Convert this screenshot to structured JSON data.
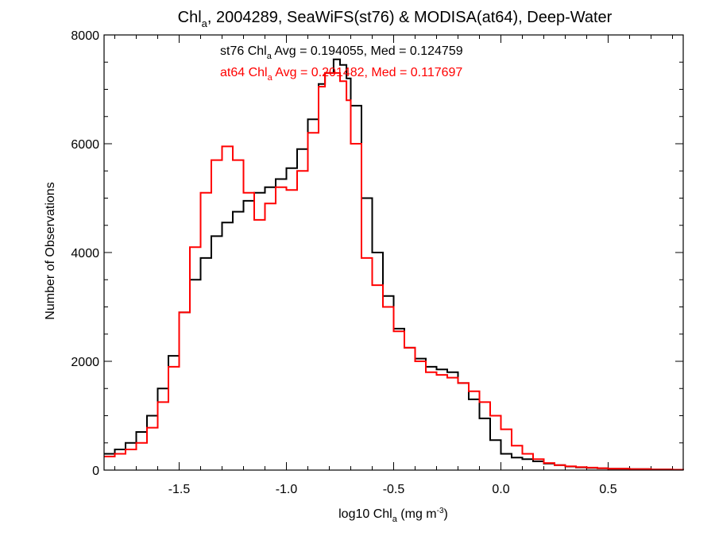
{
  "chart_data": {
    "type": "line",
    "title": {
      "pre": "Chl",
      "sub": "a",
      "post": ", 2004289, SeaWiFS(st76) & MODISA(at64), Deep-Water"
    },
    "xlabel": {
      "pre": "log10 Chl",
      "sub": "a",
      "mid": " (mg m",
      "sup": "-3",
      "post": ")"
    },
    "ylabel": "Number of Observations",
    "xlim": [
      -1.85,
      0.85
    ],
    "ylim": [
      0,
      8000
    ],
    "x_ticks": [
      -1.5,
      -1.0,
      -0.5,
      0.0,
      0.5
    ],
    "x_tick_labels": [
      "-1.5",
      "-1.0",
      "-0.5",
      "0.0",
      "0.5"
    ],
    "y_ticks": [
      0,
      2000,
      4000,
      6000,
      8000
    ],
    "y_tick_labels": [
      "0",
      "2000",
      "4000",
      "6000",
      "8000"
    ],
    "grid": false,
    "annotations": [
      {
        "series": "st76",
        "pre": "st76 Chl",
        "sub": "a",
        "post": " Avg = 0.194055, Med = 0.124759",
        "color": "#000000"
      },
      {
        "series": "at64",
        "pre": "at64 Chl",
        "sub": "a",
        "post": " Avg = 0.201482, Med = 0.117697",
        "color": "#ff0000"
      }
    ],
    "series": [
      {
        "name": "st76",
        "color": "#000000",
        "x": [
          -1.85,
          -1.8,
          -1.75,
          -1.7,
          -1.65,
          -1.6,
          -1.55,
          -1.5,
          -1.45,
          -1.4,
          -1.35,
          -1.3,
          -1.25,
          -1.2,
          -1.15,
          -1.1,
          -1.05,
          -1.0,
          -0.95,
          -0.9,
          -0.85,
          -0.82,
          -0.78,
          -0.75,
          -0.72,
          -0.7,
          -0.65,
          -0.6,
          -0.55,
          -0.5,
          -0.45,
          -0.4,
          -0.35,
          -0.3,
          -0.25,
          -0.2,
          -0.15,
          -0.1,
          -0.05,
          0.0,
          0.05,
          0.1,
          0.15,
          0.2,
          0.25,
          0.3,
          0.35,
          0.4,
          0.45,
          0.5,
          0.6,
          0.7,
          0.8,
          0.85
        ],
        "y": [
          300,
          380,
          500,
          700,
          1000,
          1500,
          2100,
          2900,
          3500,
          3900,
          4300,
          4550,
          4750,
          4950,
          5100,
          5200,
          5350,
          5550,
          5900,
          6450,
          7100,
          7300,
          7550,
          7450,
          7200,
          6700,
          5000,
          4000,
          3200,
          2600,
          2250,
          2050,
          1900,
          1850,
          1800,
          1600,
          1300,
          950,
          550,
          300,
          230,
          200,
          160,
          120,
          90,
          65,
          50,
          40,
          32,
          25,
          18,
          12,
          8,
          5
        ]
      },
      {
        "name": "at64",
        "color": "#ff0000",
        "x": [
          -1.85,
          -1.8,
          -1.75,
          -1.7,
          -1.65,
          -1.6,
          -1.55,
          -1.5,
          -1.45,
          -1.4,
          -1.35,
          -1.3,
          -1.25,
          -1.2,
          -1.15,
          -1.1,
          -1.05,
          -1.0,
          -0.95,
          -0.9,
          -0.85,
          -0.82,
          -0.78,
          -0.75,
          -0.72,
          -0.7,
          -0.65,
          -0.6,
          -0.55,
          -0.5,
          -0.45,
          -0.4,
          -0.35,
          -0.3,
          -0.25,
          -0.2,
          -0.15,
          -0.1,
          -0.05,
          0.0,
          0.05,
          0.1,
          0.15,
          0.2,
          0.25,
          0.3,
          0.35,
          0.4,
          0.45,
          0.5,
          0.6,
          0.7,
          0.8,
          0.85
        ],
        "y": [
          250,
          300,
          380,
          500,
          780,
          1250,
          1900,
          2900,
          4100,
          5100,
          5700,
          5950,
          5700,
          5100,
          4600,
          4900,
          5200,
          5150,
          5500,
          6200,
          7050,
          7300,
          7300,
          7150,
          6800,
          6000,
          3900,
          3400,
          3000,
          2550,
          2250,
          2000,
          1800,
          1750,
          1700,
          1600,
          1450,
          1250,
          1000,
          750,
          450,
          300,
          200,
          130,
          90,
          70,
          55,
          45,
          35,
          25,
          18,
          12,
          8,
          5
        ]
      }
    ]
  }
}
